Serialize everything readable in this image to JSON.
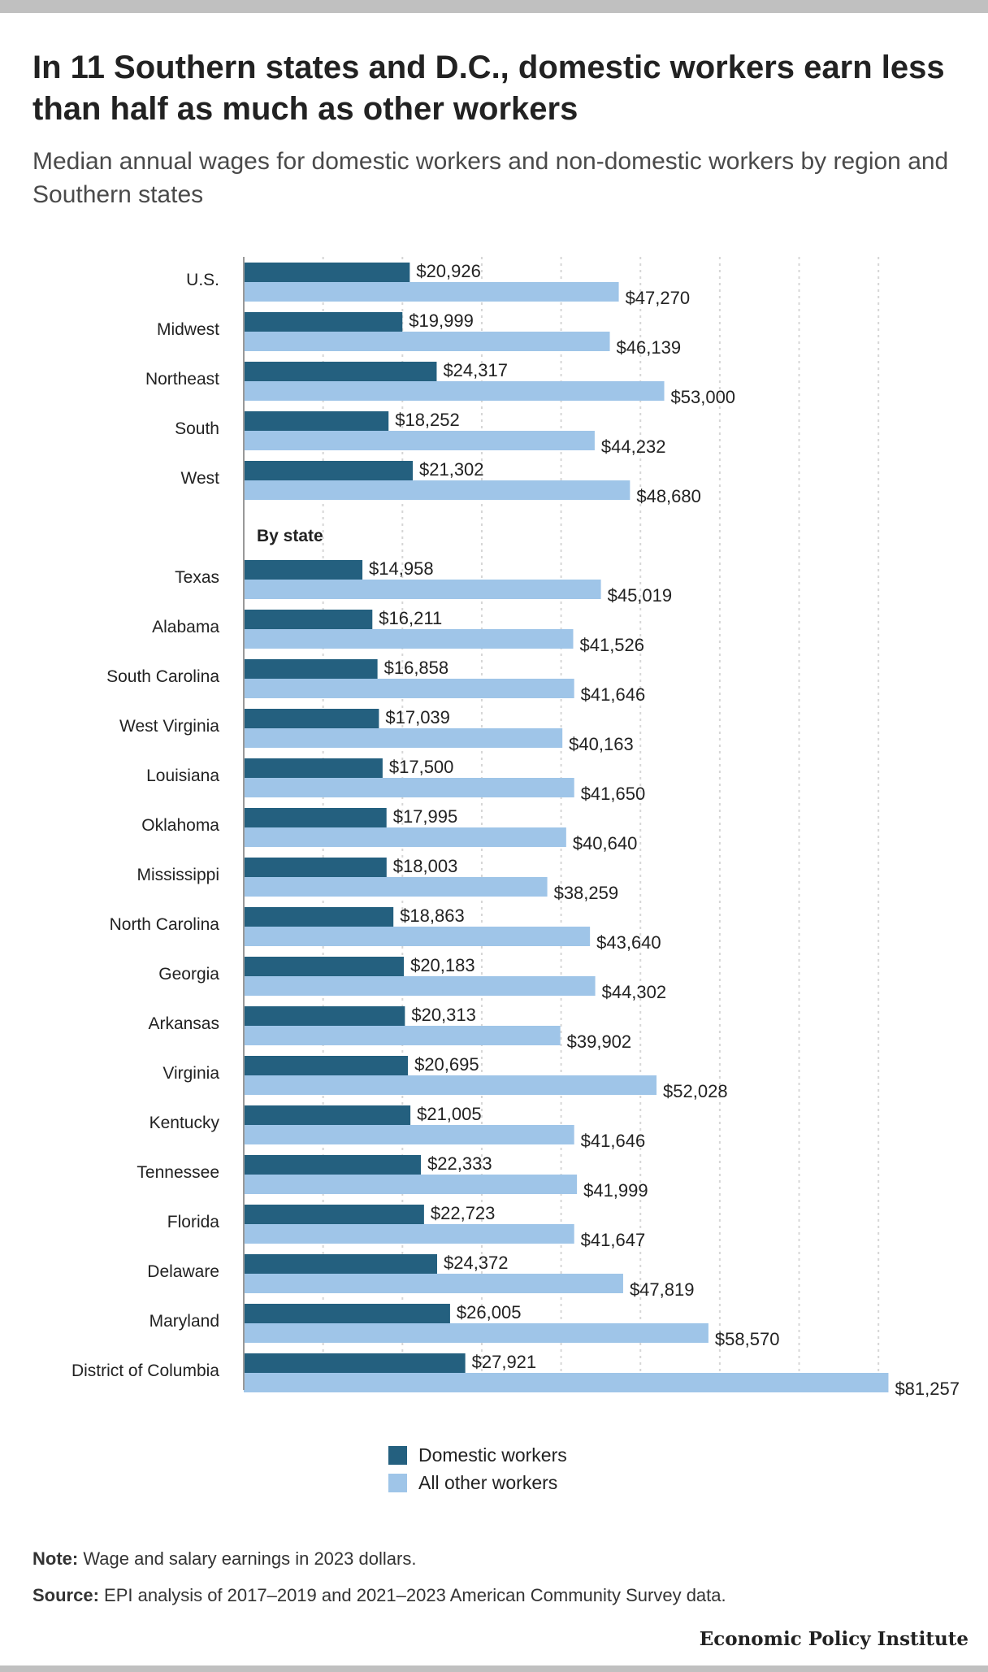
{
  "title": "In 11 Southern states and D.C., domestic workers earn less than half as much as other workers",
  "subtitle": "Median annual wages for domestic workers and non-domestic workers by region and Southern states",
  "note_label": "Note:",
  "note_text": " Wage and salary earnings in 2023 dollars.",
  "source_label": "Source:",
  "source_text": " EPI analysis of 2017–2019 and 2021–2023 American Community Survey data.",
  "brand": "Economic Policy Institute",
  "colors": {
    "domestic": "#24607f",
    "other": "#9fc5e8",
    "grid": "#d6d6d6",
    "axis": "#999999"
  },
  "legend": [
    {
      "label": "Domestic workers",
      "color": "#24607f"
    },
    {
      "label": "All other workers",
      "color": "#9fc5e8"
    }
  ],
  "chart_data": {
    "type": "bar",
    "orientation": "horizontal",
    "xlim": [
      0,
      85000
    ],
    "grid": true,
    "legend_position": "bottom",
    "section_label": "By state",
    "series": [
      {
        "name": "Domestic workers",
        "color": "#24607f"
      },
      {
        "name": "All other workers",
        "color": "#9fc5e8"
      }
    ],
    "groups": [
      {
        "label": "U.S.",
        "section": "region",
        "domestic": 20926,
        "domestic_label": "$20,926",
        "other": 47270,
        "other_label": "$47,270"
      },
      {
        "label": "Midwest",
        "section": "region",
        "domestic": 19999,
        "domestic_label": "$19,999",
        "other": 46139,
        "other_label": "$46,139"
      },
      {
        "label": "Northeast",
        "section": "region",
        "domestic": 24317,
        "domestic_label": "$24,317",
        "other": 53000,
        "other_label": "$53,000"
      },
      {
        "label": "South",
        "section": "region",
        "domestic": 18252,
        "domestic_label": "$18,252",
        "other": 44232,
        "other_label": "$44,232"
      },
      {
        "label": "West",
        "section": "region",
        "domestic": 21302,
        "domestic_label": "$21,302",
        "other": 48680,
        "other_label": "$48,680"
      },
      {
        "label": "Texas",
        "section": "state",
        "domestic": 14958,
        "domestic_label": "$14,958",
        "other": 45019,
        "other_label": "$45,019"
      },
      {
        "label": "Alabama",
        "section": "state",
        "domestic": 16211,
        "domestic_label": "$16,211",
        "other": 41526,
        "other_label": "$41,526"
      },
      {
        "label": "South Carolina",
        "section": "state",
        "domestic": 16858,
        "domestic_label": "$16,858",
        "other": 41646,
        "other_label": "$41,646"
      },
      {
        "label": "West Virginia",
        "section": "state",
        "domestic": 17039,
        "domestic_label": "$17,039",
        "other": 40163,
        "other_label": "$40,163"
      },
      {
        "label": "Louisiana",
        "section": "state",
        "domestic": 17500,
        "domestic_label": "$17,500",
        "other": 41650,
        "other_label": "$41,650"
      },
      {
        "label": "Oklahoma",
        "section": "state",
        "domestic": 17995,
        "domestic_label": "$17,995",
        "other": 40640,
        "other_label": "$40,640"
      },
      {
        "label": "Mississippi",
        "section": "state",
        "domestic": 18003,
        "domestic_label": "$18,003",
        "other": 38259,
        "other_label": "$38,259"
      },
      {
        "label": "North Carolina",
        "section": "state",
        "domestic": 18863,
        "domestic_label": "$18,863",
        "other": 43640,
        "other_label": "$43,640"
      },
      {
        "label": "Georgia",
        "section": "state",
        "domestic": 20183,
        "domestic_label": "$20,183",
        "other": 44302,
        "other_label": "$44,302"
      },
      {
        "label": "Arkansas",
        "section": "state",
        "domestic": 20313,
        "domestic_label": "$20,313",
        "other": 39902,
        "other_label": "$39,902"
      },
      {
        "label": "Virginia",
        "section": "state",
        "domestic": 20695,
        "domestic_label": "$20,695",
        "other": 52028,
        "other_label": "$52,028"
      },
      {
        "label": "Kentucky",
        "section": "state",
        "domestic": 21005,
        "domestic_label": "$21,005",
        "other": 41646,
        "other_label": "$41,646"
      },
      {
        "label": "Tennessee",
        "section": "state",
        "domestic": 22333,
        "domestic_label": "$22,333",
        "other": 41999,
        "other_label": "$41,999"
      },
      {
        "label": "Florida",
        "section": "state",
        "domestic": 22723,
        "domestic_label": "$22,723",
        "other": 41647,
        "other_label": "$41,647"
      },
      {
        "label": "Delaware",
        "section": "state",
        "domestic": 24372,
        "domestic_label": "$24,372",
        "other": 47819,
        "other_label": "$47,819"
      },
      {
        "label": "Maryland",
        "section": "state",
        "domestic": 26005,
        "domestic_label": "$26,005",
        "other": 58570,
        "other_label": "$58,570"
      },
      {
        "label": "District of Columbia",
        "section": "state",
        "domestic": 27921,
        "domestic_label": "$27,921",
        "other": 81257,
        "other_label": "$81,257"
      }
    ]
  }
}
